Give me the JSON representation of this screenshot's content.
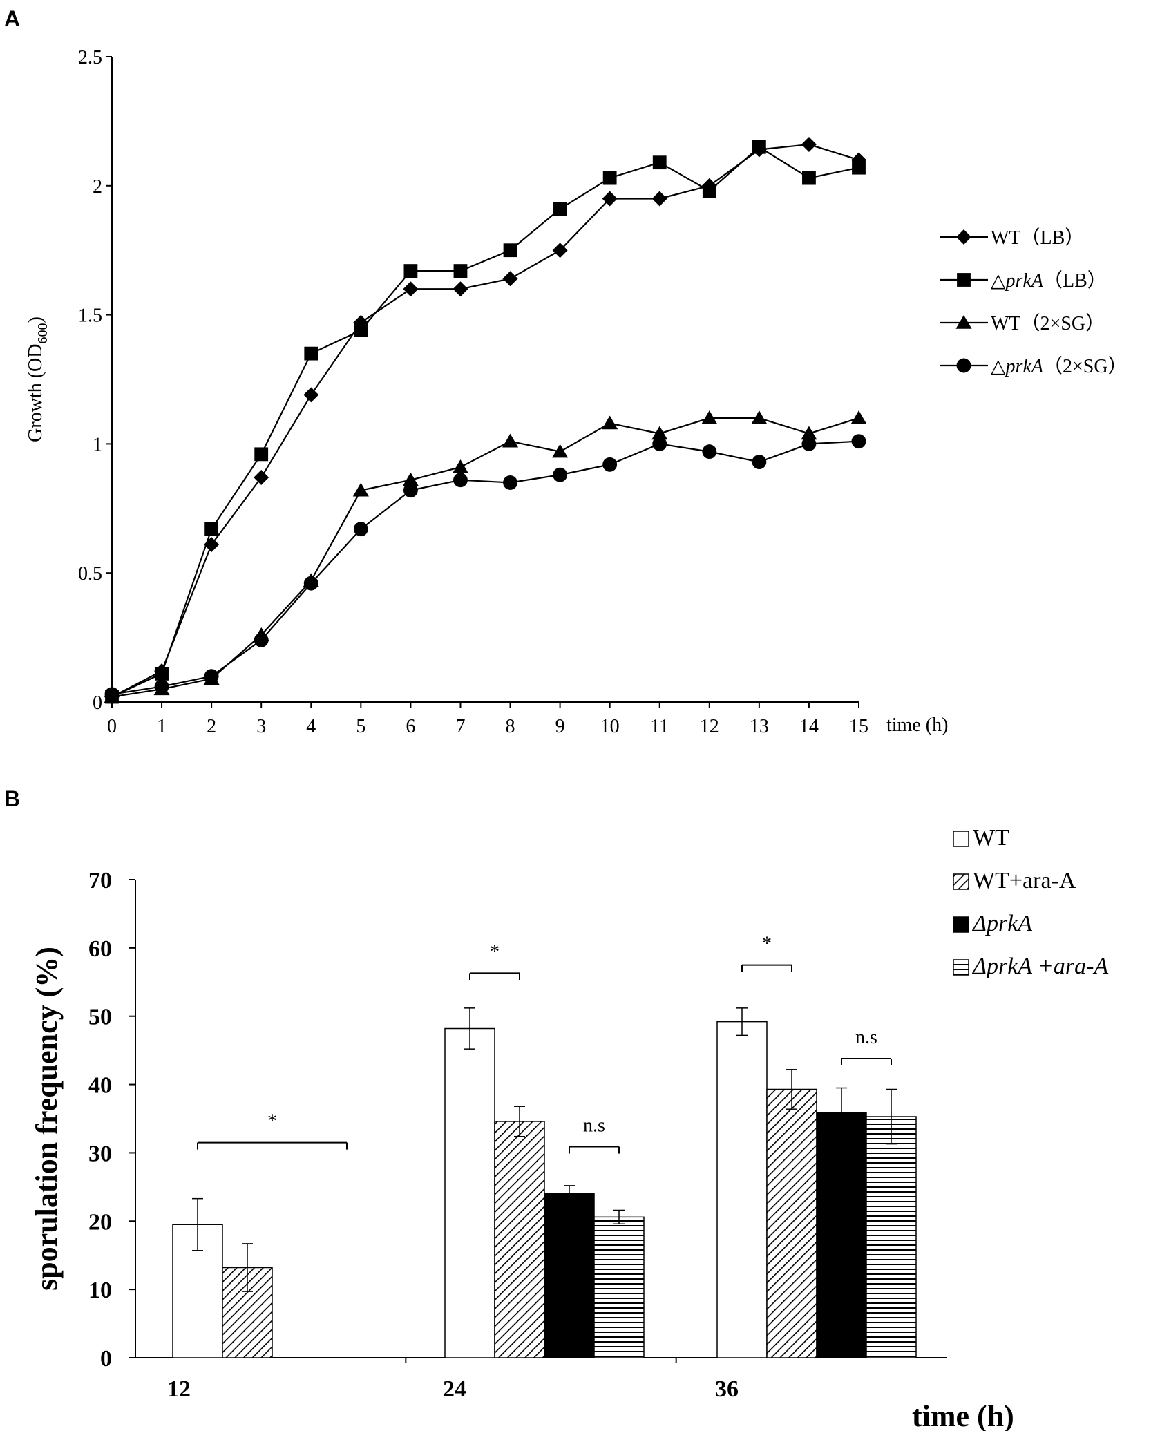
{
  "figure": {
    "panel_a_label": "A",
    "panel_b_label": "B"
  },
  "chart_data": [
    {
      "type": "line",
      "panel": "A",
      "title": "",
      "ylabel": "Growth (OD",
      "ylabel_sub": "600",
      "ylabel_close": ")",
      "xlabel": "time (h)",
      "xlim": [
        0,
        15
      ],
      "ylim": [
        0,
        2.5
      ],
      "x": [
        0,
        1,
        2,
        3,
        4,
        5,
        6,
        7,
        8,
        9,
        10,
        11,
        12,
        13,
        14,
        15
      ],
      "xticks": [
        "0",
        "1",
        "2",
        "3",
        "4",
        "5",
        "6",
        "7",
        "8",
        "9",
        "10",
        "11",
        "12",
        "13",
        "14",
        "15"
      ],
      "yticks": [
        {
          "value": 0,
          "label": "0"
        },
        {
          "value": 0.5,
          "label": "0.5"
        },
        {
          "value": 1,
          "label": "1"
        },
        {
          "value": 1.5,
          "label": "1.5"
        },
        {
          "value": 2,
          "label": "2"
        },
        {
          "value": 2.5,
          "label": "2.5"
        }
      ],
      "series": [
        {
          "name": "WT（LB）",
          "marker": "diamond",
          "values": [
            0.02,
            0.12,
            0.61,
            0.87,
            1.19,
            1.47,
            1.6,
            1.6,
            1.64,
            1.75,
            1.95,
            1.95,
            2.0,
            2.14,
            2.16,
            2.1
          ]
        },
        {
          "name": "△prkA（LB）",
          "name_prefix": "△",
          "name_italic": "prkA",
          "name_suffix": "（LB）",
          "marker": "square",
          "values": [
            0.02,
            0.11,
            0.67,
            0.96,
            1.35,
            1.44,
            1.67,
            1.67,
            1.75,
            1.91,
            2.03,
            2.09,
            1.98,
            2.15,
            2.03,
            2.07
          ]
        },
        {
          "name": "WT（2×SG）",
          "marker": "triangle",
          "values": [
            0.02,
            0.05,
            0.09,
            0.26,
            0.47,
            0.82,
            0.86,
            0.91,
            1.01,
            0.97,
            1.08,
            1.04,
            1.1,
            1.1,
            1.04,
            1.1
          ]
        },
        {
          "name": "△prkA（2×SG）",
          "name_prefix": "△",
          "name_italic": "prkA",
          "name_suffix": "（2×SG）",
          "marker": "circle",
          "values": [
            0.03,
            0.06,
            0.1,
            0.24,
            0.46,
            0.67,
            0.82,
            0.86,
            0.85,
            0.88,
            0.92,
            1.0,
            0.97,
            0.93,
            1.0,
            1.01
          ]
        }
      ],
      "legend_position": "right"
    },
    {
      "type": "bar",
      "panel": "B",
      "title": "",
      "ylabel": "sporulation frequency (%)",
      "xlabel": "time (h)",
      "ylim": [
        0,
        70
      ],
      "yticks": [
        "0",
        "10",
        "20",
        "30",
        "40",
        "50",
        "60",
        "70"
      ],
      "categories": [
        "12",
        "24",
        "36"
      ],
      "series": [
        {
          "name": "WT",
          "pattern": "empty",
          "values": [
            19.5,
            48.2,
            49.2
          ],
          "errors": [
            3.8,
            3.0,
            2.0
          ]
        },
        {
          "name": "WT+ara-A",
          "pattern": "diagonal",
          "values": [
            13.2,
            34.6,
            39.3
          ],
          "errors": [
            3.5,
            2.2,
            2.9
          ]
        },
        {
          "name": "ΔprkA",
          "name_prefix": "Δ",
          "name_italic": "prkA",
          "name_suffix": "",
          "pattern": "solid",
          "values": [
            null,
            24.0,
            35.9
          ],
          "errors": [
            null,
            1.2,
            3.6
          ]
        },
        {
          "name": "ΔprkA +ara-A",
          "name_prefix": "Δ",
          "name_italic": "prkA +ara-A",
          "name_suffix": "",
          "pattern": "horizontal",
          "values": [
            null,
            20.6,
            35.3
          ],
          "errors": [
            null,
            1.0,
            4.0
          ]
        }
      ],
      "significance": [
        {
          "category": "12",
          "label": "*",
          "from_series": 0,
          "to_series": 3,
          "y": 31.5
        },
        {
          "category": "24",
          "label": "*",
          "from_series": 0,
          "to_series": 1,
          "y": 56.3
        },
        {
          "category": "24",
          "label": "n.s",
          "from_series": 2,
          "to_series": 3,
          "y": 30.9
        },
        {
          "category": "36",
          "label": "*",
          "from_series": 0,
          "to_series": 1,
          "y": 57.5
        },
        {
          "category": "36",
          "label": "n.s",
          "from_series": 2,
          "to_series": 3,
          "y": 43.8
        }
      ],
      "legend_position": "top-right"
    }
  ]
}
